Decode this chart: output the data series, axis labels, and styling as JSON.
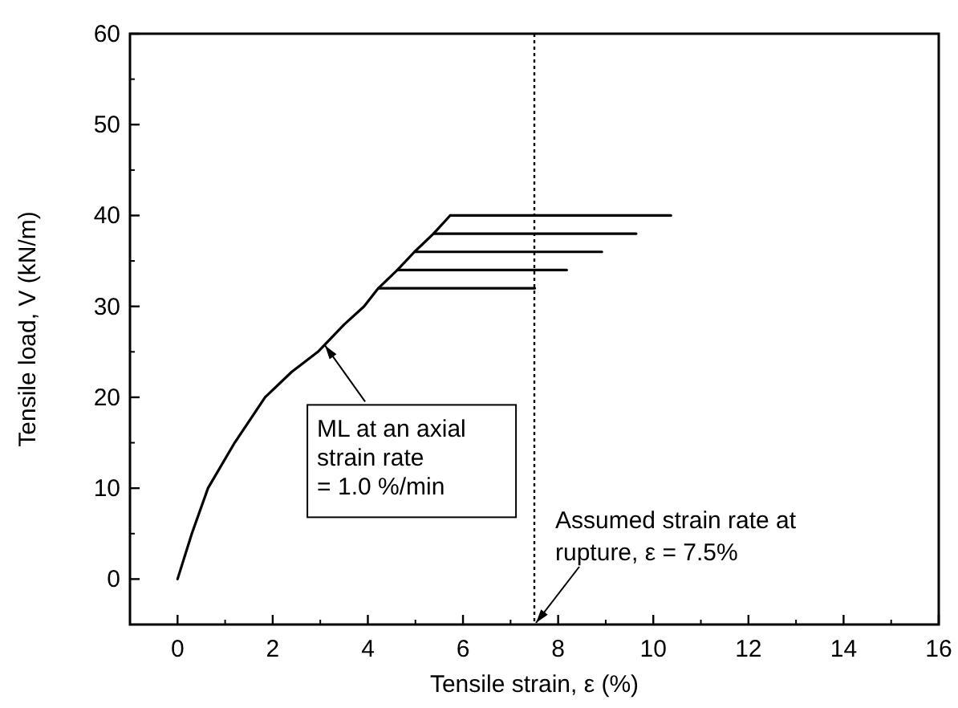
{
  "chart_data": {
    "type": "line",
    "xlabel": "Tensile strain, ε (%)",
    "ylabel": "Tensile load, V (kN/m)",
    "xlim": [
      -1,
      16
    ],
    "ylim": [
      -5,
      60
    ],
    "xticks": [
      0,
      2,
      4,
      6,
      8,
      10,
      12,
      14,
      16
    ],
    "yticks": [
      0,
      10,
      20,
      30,
      40,
      50,
      60
    ],
    "grid": false,
    "line_style": "solid",
    "marker": "none",
    "series": [
      {
        "color": "#000000",
        "x": [
          0,
          0.3,
          0.64,
          1.2,
          1.84,
          2.4,
          2.95,
          3.5,
          3.92,
          4.22,
          4.62,
          4.98,
          5.38,
          5.73
        ],
        "values": [
          0,
          5,
          10,
          15,
          20,
          22.8,
          25,
          28,
          30,
          32,
          34,
          36,
          38,
          40
        ]
      },
      {
        "color": "#000000",
        "x": [
          5.73,
          10.37
        ],
        "values": [
          40,
          40
        ]
      },
      {
        "color": "#000000",
        "x": [
          5.38,
          9.64
        ],
        "values": [
          38,
          38
        ]
      },
      {
        "color": "#000000",
        "x": [
          4.98,
          8.92
        ],
        "values": [
          36,
          36
        ]
      },
      {
        "color": "#000000",
        "x": [
          4.62,
          8.18
        ],
        "values": [
          34,
          34
        ]
      },
      {
        "color": "#000000",
        "x": [
          4.22,
          7.51
        ],
        "values": [
          32,
          32
        ]
      }
    ],
    "ref_lines": [
      {
        "axis": "x",
        "value": 7.5,
        "line_style": "dotted",
        "color": "#000000"
      }
    ],
    "annotations": [
      {
        "text": "ML at an axial\nstrain rate\n= 1.0 %/min",
        "x": 3.1,
        "y": 25.7
      },
      {
        "text": "Assumed strain rate at\nrupture, ε = 7.5%",
        "x": 7.5,
        "y": -5
      }
    ]
  }
}
